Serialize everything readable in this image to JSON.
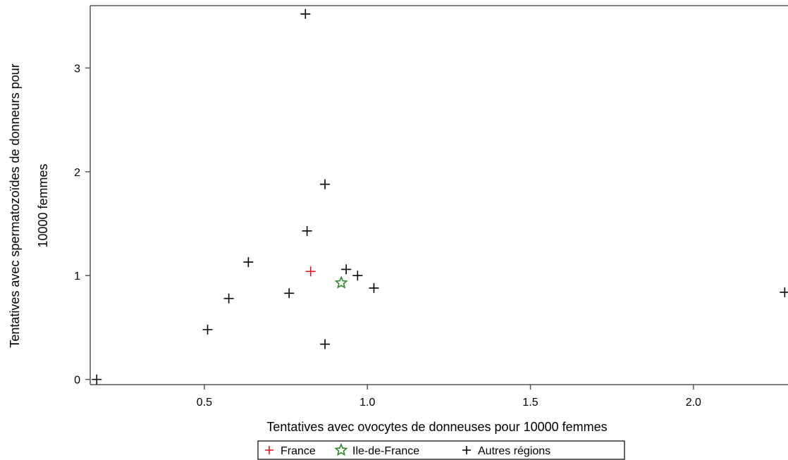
{
  "chart_data": {
    "type": "scatter",
    "title": "",
    "xlabel": "Tentatives avec ovocytes de donneuses pour 10000 femmes",
    "ylabel_lines": [
      "Tentatives avec spermatozoïdes de donneurs pour",
      "10000 femmes"
    ],
    "xlim": [
      0.15,
      2.29
    ],
    "ylim": [
      -0.05,
      3.6
    ],
    "x_ticks": [
      {
        "value": 0.5,
        "label": "0.5"
      },
      {
        "value": 1.0,
        "label": "1.0"
      },
      {
        "value": 1.5,
        "label": "1.5"
      },
      {
        "value": 2.0,
        "label": "2.0"
      }
    ],
    "y_ticks": [
      {
        "value": 0,
        "label": "0"
      },
      {
        "value": 1,
        "label": "1"
      },
      {
        "value": 2,
        "label": "2"
      },
      {
        "value": 3,
        "label": "3"
      }
    ],
    "grid": false,
    "legend_position": "bottom-center",
    "series": [
      {
        "name": "France",
        "marker": "plus",
        "color": "#e8141b",
        "points": [
          {
            "x": 0.826,
            "y": 1.04
          }
        ]
      },
      {
        "name": "Ile-de-France",
        "marker": "star",
        "color": "#2a8a2a",
        "points": [
          {
            "x": 0.92,
            "y": 0.93
          }
        ]
      },
      {
        "name": "Autres régions",
        "marker": "plus",
        "color": "#000000",
        "points": [
          {
            "x": 0.17,
            "y": 0.0
          },
          {
            "x": 0.51,
            "y": 0.48
          },
          {
            "x": 0.575,
            "y": 0.78
          },
          {
            "x": 0.635,
            "y": 1.13
          },
          {
            "x": 0.76,
            "y": 0.83
          },
          {
            "x": 0.81,
            "y": 3.52
          },
          {
            "x": 0.815,
            "y": 1.43
          },
          {
            "x": 0.87,
            "y": 1.88
          },
          {
            "x": 0.87,
            "y": 0.34
          },
          {
            "x": 0.935,
            "y": 1.06
          },
          {
            "x": 0.97,
            "y": 1.0
          },
          {
            "x": 1.02,
            "y": 0.88
          },
          {
            "x": 2.28,
            "y": 0.84
          }
        ]
      }
    ]
  }
}
